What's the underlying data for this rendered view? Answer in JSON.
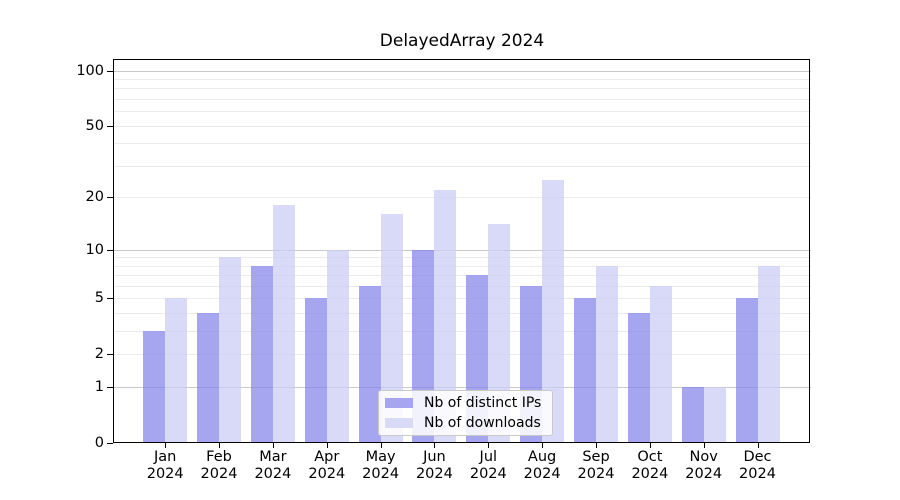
{
  "chart_data": {
    "type": "bar",
    "title": "DelayedArray 2024",
    "categories": [
      "Jan 2024",
      "Feb 2024",
      "Mar 2024",
      "Apr 2024",
      "May 2024",
      "Jun 2024",
      "Jul 2024",
      "Aug 2024",
      "Sep 2024",
      "Oct 2024",
      "Nov 2024",
      "Dec 2024"
    ],
    "series": [
      {
        "name": "Nb of distinct IPs",
        "values": [
          3,
          4,
          8,
          5,
          6,
          10,
          7,
          6,
          5,
          4,
          1,
          5
        ],
        "fill": "rgba(130,130,234,0.72)",
        "legend_color": "#a5a5f0"
      },
      {
        "name": "Nb of downloads",
        "values": [
          5,
          9,
          18,
          10,
          16,
          22,
          14,
          25,
          8,
          6,
          1,
          8
        ],
        "fill": "rgba(202,202,245,0.72)",
        "legend_color": "#d9d9f8"
      }
    ],
    "yscale": "log1p",
    "ylim": [
      0,
      117
    ],
    "yticks": [
      0,
      1,
      2,
      5,
      10,
      20,
      50,
      100
    ],
    "grid": {
      "major_lines": [
        1,
        10,
        100
      ],
      "minor_lines": [
        2,
        3,
        4,
        5,
        6,
        7,
        8,
        9,
        20,
        30,
        40,
        50,
        60,
        70,
        80,
        90
      ],
      "major_color": "#c9c9c9",
      "minor_color": "#ebebeb"
    },
    "legend": {
      "position": "lower center"
    },
    "axis_color": "#000000"
  }
}
